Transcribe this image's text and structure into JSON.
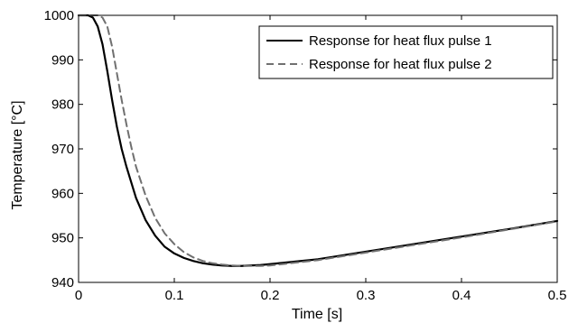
{
  "chart_data": {
    "type": "line",
    "title": "",
    "xlabel": "Time [s]",
    "ylabel": "Temperature [°C]",
    "xlim": [
      0,
      0.5
    ],
    "ylim": [
      940,
      1000
    ],
    "xticks": [
      0,
      0.1,
      0.2,
      0.3,
      0.4,
      0.5
    ],
    "xtick_labels": [
      "0",
      "0.1",
      "0.2",
      "0.3",
      "0.4",
      "0.5"
    ],
    "yticks": [
      940,
      950,
      960,
      970,
      980,
      990,
      1000
    ],
    "ytick_labels": [
      "940",
      "950",
      "960",
      "970",
      "980",
      "990",
      "1000"
    ],
    "grid": false,
    "legend_position": "top-right",
    "series": [
      {
        "name": "Response for heat flux pulse 1",
        "color": "#000000",
        "style": "solid",
        "x": [
          0,
          0.01,
          0.015,
          0.02,
          0.025,
          0.03,
          0.035,
          0.04,
          0.045,
          0.05,
          0.06,
          0.07,
          0.08,
          0.09,
          0.1,
          0.11,
          0.12,
          0.13,
          0.14,
          0.15,
          0.16,
          0.17,
          0.18,
          0.19,
          0.2,
          0.25,
          0.3,
          0.35,
          0.4,
          0.45,
          0.5
        ],
        "y": [
          1000,
          1000,
          999.5,
          997.5,
          993.5,
          987.5,
          981,
          975,
          970,
          966,
          959,
          954,
          950.5,
          948,
          946.5,
          945.5,
          944.8,
          944.3,
          944,
          943.8,
          943.7,
          943.7,
          943.8,
          943.9,
          944.1,
          945.2,
          946.9,
          948.6,
          950.3,
          952,
          953.8
        ]
      },
      {
        "name": "Response for heat flux pulse 2",
        "color": "#707070",
        "style": "dashed",
        "x": [
          0,
          0.02,
          0.025,
          0.03,
          0.035,
          0.04,
          0.045,
          0.05,
          0.055,
          0.06,
          0.07,
          0.08,
          0.09,
          0.1,
          0.11,
          0.12,
          0.13,
          0.14,
          0.15,
          0.16,
          0.17,
          0.18,
          0.19,
          0.2,
          0.25,
          0.3,
          0.35,
          0.4,
          0.45,
          0.5
        ],
        "y": [
          1000,
          1000,
          999.5,
          997.5,
          993,
          987,
          981,
          975.5,
          970.5,
          966,
          959.5,
          954.5,
          951,
          948.6,
          946.8,
          945.6,
          944.8,
          944.3,
          944,
          943.8,
          943.7,
          943.7,
          943.7,
          943.8,
          945,
          946.7,
          948.4,
          950.1,
          951.9,
          953.7
        ]
      }
    ]
  }
}
